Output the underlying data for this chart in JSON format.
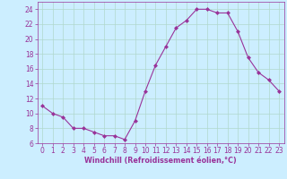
{
  "x": [
    0,
    1,
    2,
    3,
    4,
    5,
    6,
    7,
    8,
    9,
    10,
    11,
    12,
    13,
    14,
    15,
    16,
    17,
    18,
    19,
    20,
    21,
    22,
    23
  ],
  "y": [
    11,
    10,
    9.5,
    8,
    8,
    7.5,
    7,
    7,
    6.5,
    9,
    13,
    16.5,
    19,
    21.5,
    22.5,
    24,
    24,
    23.5,
    23.5,
    21,
    17.5,
    15.5,
    14.5,
    13
  ],
  "line_color": "#993399",
  "marker": "D",
  "marker_size": 2.0,
  "marker_edge_width": 0.5,
  "line_width": 0.8,
  "bg_color": "#cceeff",
  "grid_color": "#b0d8cc",
  "xlabel": "Windchill (Refroidissement éolien,°C)",
  "xlabel_color": "#993399",
  "tick_color": "#993399",
  "spine_color": "#993399",
  "ylim": [
    6,
    25
  ],
  "xlim": [
    -0.5,
    23.5
  ],
  "yticks": [
    6,
    8,
    10,
    12,
    14,
    16,
    18,
    20,
    22,
    24
  ],
  "xticks": [
    0,
    1,
    2,
    3,
    4,
    5,
    6,
    7,
    8,
    9,
    10,
    11,
    12,
    13,
    14,
    15,
    16,
    17,
    18,
    19,
    20,
    21,
    22,
    23
  ],
  "ytick_fontsize": 5.5,
  "xtick_fontsize": 4.8,
  "xlabel_fontsize": 5.8,
  "xlabel_fontweight": "bold"
}
